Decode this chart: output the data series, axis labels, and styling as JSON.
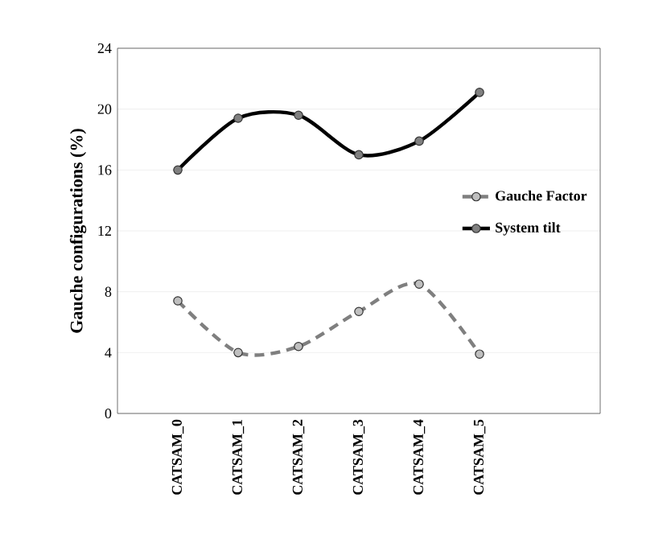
{
  "chart_data": {
    "type": "line",
    "ylabel": "Gauche configurations (%)",
    "categories": [
      "CATSAM_0",
      "CATSAM_1",
      "CATSAM_2",
      "CATSAM_3",
      "CATSAM_4",
      "CATSAM_5"
    ],
    "series": [
      {
        "name": "Gauche Factor",
        "color": "#7f7f7f",
        "line_style": "dashed",
        "values": [
          7.4,
          4.0,
          4.4,
          6.7,
          8.5,
          3.9
        ]
      },
      {
        "name": "System tilt",
        "color": "#000000",
        "line_style": "solid",
        "values": [
          16.0,
          19.4,
          19.6,
          17.0,
          17.9,
          21.1
        ]
      }
    ],
    "ylim": [
      0,
      24
    ],
    "yticks": [
      0,
      4,
      8,
      12,
      16,
      20,
      24
    ],
    "grid": "y",
    "legend": "right",
    "marker": "circle"
  }
}
